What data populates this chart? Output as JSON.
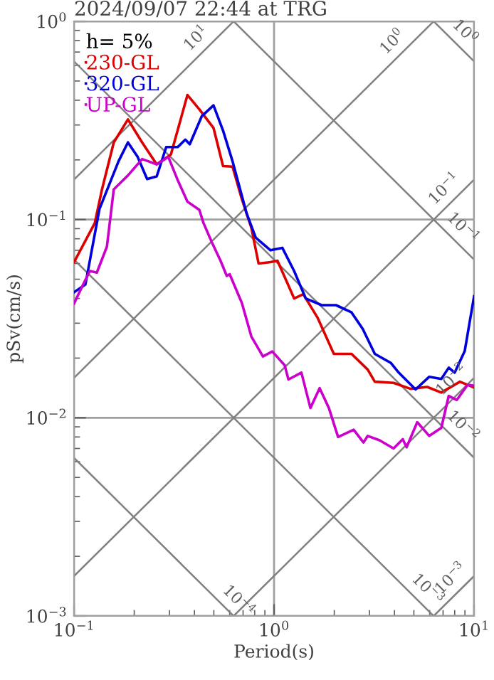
{
  "chart_data": {
    "type": "line",
    "title": "2024/09/07 22:44 at TRG",
    "xlabel": "Period(s)",
    "ylabel": "pSv(cm/s)",
    "legend_title": "h= 5%",
    "legend": "top left",
    "log": "xy",
    "grid": true,
    "xlim": [
      0.1,
      10
    ],
    "ylim": [
      0.001,
      1
    ],
    "xticks": [
      {
        "value": 0.1,
        "label": "10$^{−1}$"
      },
      {
        "value": 1,
        "label": "10$^{0}$"
      },
      {
        "value": 10,
        "label": "10$^{1}$"
      }
    ],
    "yticks": [
      {
        "value": 0.001,
        "label": "10$^{−3}$"
      },
      {
        "value": 0.01,
        "label": "10$^{−2}$"
      },
      {
        "value": 0.1,
        "label": "10$^{−1}$"
      },
      {
        "value": 1,
        "label": "10$^{0}$"
      }
    ],
    "series": [
      {
        "color": "#808080",
        "x": [
          0.1,
          0.628
        ],
        "values": [
          0.159,
          1
        ]
      },
      {
        "color": "#808080",
        "x": [
          0.1,
          6.28
        ],
        "values": [
          0.0159,
          1
        ]
      },
      {
        "color": "#808080",
        "x": [
          0.1,
          10
        ],
        "values": [
          0.00159,
          0.159
        ]
      },
      {
        "color": "#808080",
        "x": [
          0.628,
          10
        ],
        "values": [
          0.001,
          0.0159
        ]
      },
      {
        "color": "#808080",
        "x": [
          6.28,
          10
        ],
        "values": [
          0.001,
          0.00159
        ]
      },
      {
        "color": "#808080",
        "x": [
          6.28,
          10
        ],
        "values": [
          1,
          0.628
        ]
      },
      {
        "color": "#808080",
        "x": [
          0.628,
          10
        ],
        "values": [
          1,
          0.0628
        ]
      },
      {
        "color": "#808080",
        "x": [
          0.1,
          10
        ],
        "values": [
          0.628,
          0.00628
        ]
      },
      {
        "color": "#808080",
        "x": [
          0.1,
          6.28
        ],
        "values": [
          0.0628,
          0.001
        ]
      },
      {
        "color": "#808080",
        "x": [
          0.1,
          0.628
        ],
        "values": [
          0.00628,
          0.001
        ]
      },
      {
        "name": "230-GL",
        "color": "#dd0000",
        "x": [
          0.1,
          0.127,
          0.138,
          0.158,
          0.186,
          0.219,
          0.259,
          0.305,
          0.369,
          0.423,
          0.498,
          0.556,
          0.62,
          0.69,
          0.77,
          0.837,
          0.96,
          1.04,
          1.26,
          1.4,
          1.65,
          1.99,
          2.44,
          2.94,
          3.19,
          3.96,
          4.81,
          5.83,
          6.86,
          8.5,
          10
        ],
        "values": [
          0.061,
          0.096,
          0.142,
          0.245,
          0.32,
          0.245,
          0.19,
          0.213,
          0.425,
          0.36,
          0.29,
          0.186,
          0.185,
          0.127,
          0.091,
          0.06,
          0.061,
          0.062,
          0.04,
          0.042,
          0.032,
          0.021,
          0.021,
          0.0175,
          0.0152,
          0.015,
          0.014,
          0.0143,
          0.0134,
          0.0152,
          0.0142
        ]
      },
      {
        "name": "320-GL",
        "color": "#0000dd",
        "x": [
          0.1,
          0.114,
          0.134,
          0.167,
          0.186,
          0.208,
          0.232,
          0.259,
          0.289,
          0.33,
          0.36,
          0.379,
          0.435,
          0.498,
          0.556,
          0.62,
          0.73,
          0.81,
          0.96,
          1.1,
          1.26,
          1.44,
          1.73,
          2.04,
          2.44,
          2.78,
          3.19,
          3.84,
          4.2,
          5.1,
          5.97,
          6.86,
          7.47,
          8.0,
          8.98,
          10
        ],
        "values": [
          0.043,
          0.047,
          0.113,
          0.197,
          0.245,
          0.207,
          0.16,
          0.165,
          0.232,
          0.232,
          0.253,
          0.24,
          0.332,
          0.377,
          0.281,
          0.197,
          0.107,
          0.081,
          0.07,
          0.072,
          0.055,
          0.04,
          0.037,
          0.037,
          0.034,
          0.028,
          0.021,
          0.0189,
          0.0169,
          0.0139,
          0.0161,
          0.0157,
          0.0179,
          0.0169,
          0.0217,
          0.041
        ]
      },
      {
        "name": "UP-GL",
        "color": "#cc00cc",
        "x": [
          0.1,
          0.111,
          0.12,
          0.13,
          0.146,
          0.158,
          0.186,
          0.219,
          0.259,
          0.296,
          0.33,
          0.369,
          0.423,
          0.444,
          0.488,
          0.54,
          0.58,
          0.6,
          0.69,
          0.77,
          0.88,
          0.98,
          1.13,
          1.18,
          1.37,
          1.52,
          1.69,
          1.88,
          2.09,
          2.5,
          2.8,
          2.94,
          3.37,
          3.96,
          4.4,
          4.6,
          5.2,
          5.97,
          6.86,
          7.47,
          8.2,
          9.3,
          10
        ],
        "values": [
          0.0377,
          0.047,
          0.055,
          0.054,
          0.073,
          0.142,
          0.167,
          0.202,
          0.19,
          0.207,
          0.158,
          0.123,
          0.112,
          0.096,
          0.077,
          0.062,
          0.052,
          0.053,
          0.038,
          0.0257,
          0.0204,
          0.0216,
          0.0184,
          0.0156,
          0.0169,
          0.0112,
          0.0141,
          0.0112,
          0.008,
          0.0087,
          0.0075,
          0.0081,
          0.0077,
          0.007,
          0.0078,
          0.0071,
          0.0095,
          0.0081,
          0.0089,
          0.0129,
          0.0123,
          0.0147,
          0.0145
        ]
      }
    ],
    "annotations": [
      {
        "text": "10$^{1}$",
        "x": 0.46,
        "y": 0.73
      },
      {
        "text": "10$^{0}$",
        "x": 4.4,
        "y": 0.7
      },
      {
        "text": "10$^{0}$",
        "x": 8.0,
        "y": 0.785
      },
      {
        "text": "10$^{−1}$",
        "x": 8.0,
        "y": 0.127
      },
      {
        "text": "10$^{−1}$",
        "x": 7.8,
        "y": 0.0806
      },
      {
        "text": "10$^{−2}$",
        "x": 8.7,
        "y": 0.0138
      },
      {
        "text": "10$^{−2}$",
        "x": 7.8,
        "y": 0.00806
      },
      {
        "text": "10$^{−4}$",
        "x": 0.59,
        "y": 0.00106
      },
      {
        "text": "10$^{−3}$",
        "x": 5.2,
        "y": 0.00121
      },
      {
        "text": "10$^{−3}$",
        "x": 8.6,
        "y": 0.00137
      }
    ]
  }
}
